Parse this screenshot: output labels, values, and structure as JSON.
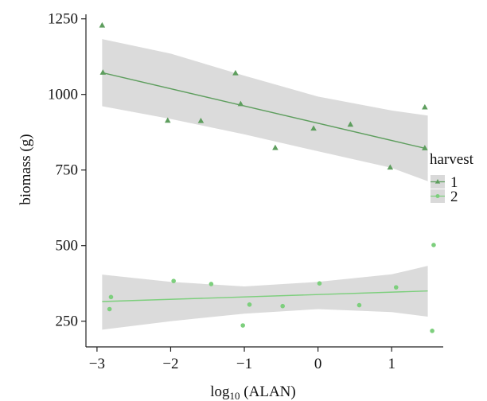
{
  "chart_data": {
    "type": "scatter",
    "xlabel": "log",
    "xlabel_sub": "10",
    "xlabel_tail": " (ALAN)",
    "ylabel": "biomass (g)",
    "xlim": [
      -3.15,
      1.7
    ],
    "ylim": [
      165,
      1265
    ],
    "x_ticks": [
      -3,
      -2,
      -1,
      0,
      1
    ],
    "x_tick_labels": [
      "−3",
      "−2",
      "−1",
      "0",
      "1"
    ],
    "y_ticks": [
      250,
      500,
      750,
      1000,
      1250
    ],
    "y_tick_labels": [
      "250",
      "500",
      "750",
      "1000",
      "1250"
    ],
    "grid": false,
    "legend": {
      "title": "harvest",
      "placement": "right"
    },
    "series": [
      {
        "name": "1",
        "color": "#5e9e5e",
        "marker": "triangle",
        "points": [
          [
            -2.93,
            1228
          ],
          [
            -2.92,
            1072
          ],
          [
            -2.04,
            913
          ],
          [
            -1.59,
            912
          ],
          [
            -1.12,
            1070
          ],
          [
            -1.05,
            968
          ],
          [
            -0.58,
            823
          ],
          [
            -0.06,
            887
          ],
          [
            0.44,
            900
          ],
          [
            0.98,
            758
          ],
          [
            1.45,
            957
          ],
          [
            1.45,
            822
          ]
        ],
        "fit": {
          "x": [
            -2.93,
            1.45
          ],
          "y": [
            1072,
            822
          ]
        },
        "ci_lower": [
          961,
          919,
          868,
          812,
          757,
          713
        ],
        "ci_upper": [
          1183,
          1135,
          1062,
          993,
          947,
          930
        ]
      },
      {
        "name": "2",
        "color": "#7dcf7d",
        "marker": "circle",
        "points": [
          [
            -2.83,
            290
          ],
          [
            -2.81,
            330
          ],
          [
            -1.96,
            383
          ],
          [
            -1.45,
            373
          ],
          [
            -1.02,
            236
          ],
          [
            -0.93,
            305
          ],
          [
            -0.48,
            300
          ],
          [
            0.02,
            375
          ],
          [
            0.56,
            303
          ],
          [
            1.06,
            362
          ],
          [
            1.55,
            218
          ],
          [
            1.57,
            502
          ]
        ],
        "fit": {
          "x": [
            -2.93,
            1.49
          ],
          "y": [
            315,
            350
          ]
        },
        "ci_lower": [
          222,
          250,
          275,
          290,
          280,
          265
        ],
        "ci_upper": [
          404,
          380,
          365,
          380,
          405,
          433
        ]
      }
    ],
    "ci_x": [
      -2.93,
      -2.0,
      -1.0,
      0.0,
      1.0,
      1.49
    ]
  }
}
